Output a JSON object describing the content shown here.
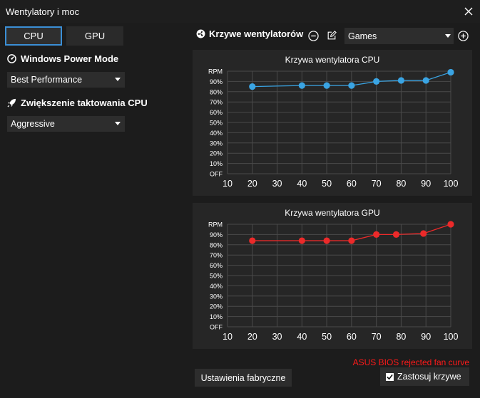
{
  "window": {
    "title": "Wentylatory i moc"
  },
  "tabs": [
    {
      "label": "CPU"
    },
    {
      "label": "GPU"
    }
  ],
  "power": {
    "label": "Windows Power Mode",
    "value": "Best Performance"
  },
  "boost": {
    "label": "Zwiększenie taktowania CPU",
    "value": "Aggressive"
  },
  "fans": {
    "label": "Krzywe wentylatorów",
    "preset": "Games"
  },
  "icons": {
    "remove": "minus-circle-icon",
    "edit": "edit-icon",
    "add": "plus-circle-icon",
    "fan": "fan-icon",
    "gauge": "gauge-icon",
    "rocket": "rocket-icon",
    "close": "close-icon"
  },
  "colors": {
    "cpu": "#3aa4e3",
    "gpu": "#ec2a2a",
    "accent": "#3b8fd6",
    "error": "#ff1a1a"
  },
  "chart_data": [
    {
      "type": "line",
      "title": "Krzywa wentylatora CPU",
      "x": [
        20,
        40,
        50,
        60,
        70,
        80,
        90,
        100
      ],
      "series": [
        {
          "values": [
            85,
            86,
            86,
            86,
            90,
            91,
            91,
            99
          ]
        }
      ],
      "xticks": [
        "10",
        "20",
        "30",
        "40",
        "50",
        "60",
        "70",
        "80",
        "90",
        "100"
      ],
      "yticks": [
        "OFF",
        "10%",
        "20%",
        "30%",
        "40%",
        "50%",
        "60%",
        "70%",
        "80%",
        "90%",
        "RPM"
      ],
      "xlim": [
        10,
        100
      ],
      "ylim": [
        0,
        100
      ],
      "grid": true
    },
    {
      "type": "line",
      "title": "Krzywa wentylatora GPU",
      "x": [
        20,
        40,
        50,
        60,
        70,
        78,
        89,
        100
      ],
      "series": [
        {
          "values": [
            84,
            84,
            84,
            84,
            90,
            90,
            91,
            100
          ]
        }
      ],
      "xticks": [
        "10",
        "20",
        "30",
        "40",
        "50",
        "60",
        "70",
        "80",
        "90",
        "100"
      ],
      "yticks": [
        "OFF",
        "10%",
        "20%",
        "30%",
        "40%",
        "50%",
        "60%",
        "70%",
        "80%",
        "90%",
        "RPM"
      ],
      "xlim": [
        10,
        100
      ],
      "ylim": [
        0,
        100
      ],
      "grid": true
    }
  ],
  "footer": {
    "factory_label": "Ustawienia fabryczne",
    "error": "ASUS BIOS rejected fan curve",
    "apply_label": "Zastosuj krzywe",
    "apply_checked": true
  }
}
